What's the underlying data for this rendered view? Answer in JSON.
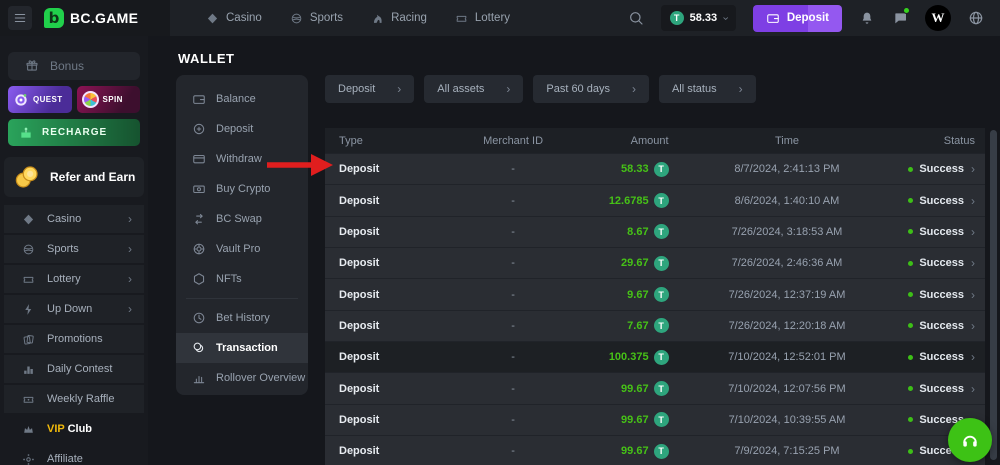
{
  "topbar": {
    "logo_text": "BC.GAME",
    "logo_letter": "b",
    "nav": [
      {
        "label": "Casino",
        "icon": "diamond"
      },
      {
        "label": "Sports",
        "icon": "ball"
      },
      {
        "label": "Racing",
        "icon": "horse"
      },
      {
        "label": "Lottery",
        "icon": "ticket"
      }
    ],
    "balance": "58.33",
    "balance_coin": "T",
    "deposit_label": "Deposit",
    "avatar_letter": "W"
  },
  "sidebar": {
    "bonus_label": "Bonus",
    "quest_label": "QUEST",
    "spin_label": "SPIN",
    "recharge_label": "RECHARGE",
    "refer_label": "Refer and Earn",
    "items": [
      {
        "label": "Casino",
        "icon": "diamond",
        "chevron": true
      },
      {
        "label": "Sports",
        "icon": "ball",
        "chevron": true
      },
      {
        "label": "Lottery",
        "icon": "ticket",
        "chevron": true
      },
      {
        "label": "Up Down",
        "icon": "lightning",
        "chevron": true
      },
      {
        "label": "Promotions",
        "icon": "cards"
      },
      {
        "label": "Daily Contest",
        "icon": "contest"
      },
      {
        "label": "Weekly Raffle",
        "icon": "raffle"
      },
      {
        "label": "VIP Club",
        "icon": "crown",
        "accent": "VIP",
        "rest": "Club",
        "flat": true
      },
      {
        "label": "Affiliate",
        "icon": "affiliate",
        "flat": true
      }
    ]
  },
  "wallet": {
    "title": "WALLET",
    "active": "Transaction",
    "menu": [
      {
        "label": "Balance",
        "icon": "wallet"
      },
      {
        "label": "Deposit",
        "icon": "coinplus"
      },
      {
        "label": "Withdraw",
        "icon": "card"
      },
      {
        "label": "Buy Crypto",
        "icon": "cash"
      },
      {
        "label": "BC Swap",
        "icon": "swap"
      },
      {
        "label": "Vault Pro",
        "icon": "vault"
      },
      {
        "label": "NFTs",
        "icon": "nft",
        "divider_after": true
      },
      {
        "label": "Bet History",
        "icon": "clock"
      },
      {
        "label": "Transaction",
        "icon": "coins"
      },
      {
        "label": "Rollover Overview",
        "icon": "chart"
      }
    ]
  },
  "filters": [
    {
      "label": "Deposit"
    },
    {
      "label": "All assets"
    },
    {
      "label": "Past 60 days"
    },
    {
      "label": "All status"
    }
  ],
  "table": {
    "headers": [
      "Type",
      "Merchant ID",
      "Amount",
      "Time",
      "Status"
    ],
    "rows": [
      {
        "type": "Deposit",
        "merchant": "-",
        "amount": "58.33",
        "coin": "T",
        "time": "8/7/2024, 2:41:13 PM",
        "status": "Success"
      },
      {
        "type": "Deposit",
        "merchant": "-",
        "amount": "12.6785",
        "coin": "T",
        "time": "8/6/2024, 1:40:10 AM",
        "status": "Success"
      },
      {
        "type": "Deposit",
        "merchant": "-",
        "amount": "8.67",
        "coin": "T",
        "time": "7/26/2024, 3:18:53 AM",
        "status": "Success"
      },
      {
        "type": "Deposit",
        "merchant": "-",
        "amount": "29.67",
        "coin": "T",
        "time": "7/26/2024, 2:46:36 AM",
        "status": "Success"
      },
      {
        "type": "Deposit",
        "merchant": "-",
        "amount": "9.67",
        "coin": "T",
        "time": "7/26/2024, 12:37:19 AM",
        "status": "Success"
      },
      {
        "type": "Deposit",
        "merchant": "-",
        "amount": "7.67",
        "coin": "T",
        "time": "7/26/2024, 12:20:18 AM",
        "status": "Success"
      },
      {
        "type": "Deposit",
        "merchant": "-",
        "amount": "100.375",
        "coin": "T",
        "time": "7/10/2024, 12:52:01 PM",
        "status": "Success",
        "highlight": true
      },
      {
        "type": "Deposit",
        "merchant": "-",
        "amount": "99.67",
        "coin": "T",
        "time": "7/10/2024, 12:07:56 PM",
        "status": "Success"
      },
      {
        "type": "Deposit",
        "merchant": "-",
        "amount": "99.67",
        "coin": "T",
        "time": "7/10/2024, 10:39:55 AM",
        "status": "Success"
      },
      {
        "type": "Deposit",
        "merchant": "-",
        "amount": "99.67",
        "coin": "T",
        "time": "7/9/2024, 7:15:25 PM",
        "status": "Success"
      }
    ]
  },
  "annotation": {
    "type": "red-arrow",
    "color": "#e01e1e",
    "points_to": "first-table-row"
  },
  "colors": {
    "accent_green": "#46c117",
    "tether_teal": "#2ea57d",
    "deposit_purple": "#7e3fe4",
    "vip_gold": "#f0b90b",
    "logo_green": "#21d04b"
  }
}
